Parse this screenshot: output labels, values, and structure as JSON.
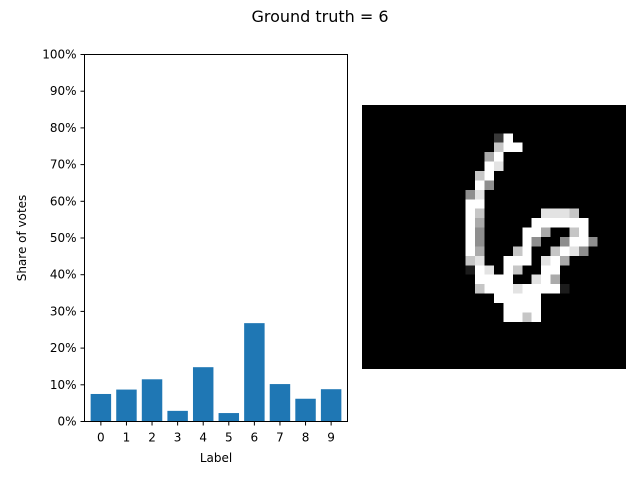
{
  "figure": {
    "suptitle": "Ground truth = 6"
  },
  "chart_data": {
    "type": "bar",
    "title": "",
    "xlabel": "Label",
    "ylabel": "Share of votes",
    "categories": [
      "0",
      "1",
      "2",
      "3",
      "4",
      "5",
      "6",
      "7",
      "8",
      "9"
    ],
    "values": [
      0.075,
      0.087,
      0.115,
      0.029,
      0.148,
      0.023,
      0.268,
      0.102,
      0.062,
      0.088
    ],
    "ylim": [
      0,
      1.0
    ],
    "yticks": [
      0,
      0.1,
      0.2,
      0.3,
      0.4,
      0.5,
      0.6,
      0.7,
      0.8,
      0.9,
      1.0
    ],
    "ytick_labels": [
      "0%",
      "10%",
      "20%",
      "30%",
      "40%",
      "50%",
      "60%",
      "70%",
      "80%",
      "90%",
      "100%"
    ],
    "bar_color": "#1f77b4",
    "grid": false,
    "legend": "none"
  },
  "digit_image": {
    "description_colors": {
      "background": "#000000",
      "stroke": "#ffffff"
    }
  }
}
